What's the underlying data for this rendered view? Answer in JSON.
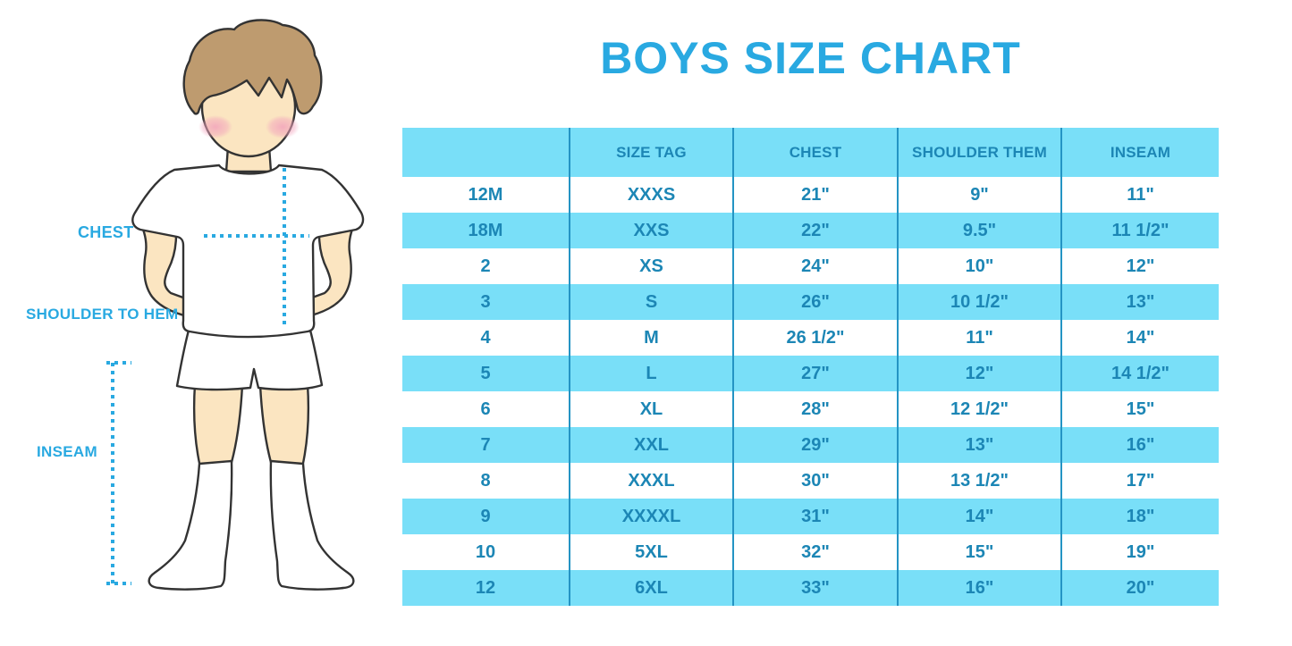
{
  "title": "BOYS SIZE CHART",
  "figure": {
    "description": "cartoon boy in white t-shirt, shorts and knee socks with dotted measurement guides",
    "labels": {
      "chest": "CHEST",
      "shoulder_to_hem": "SHOULDER TO HEM",
      "inseam": "INSEAM"
    }
  },
  "colors": {
    "accent_blue": "#29a9e1",
    "table_text_blue": "#1c86b5",
    "stripe_light_blue": "#79dff8",
    "grid_line_blue": "#2494c4",
    "skin": "#fbe5c1",
    "hair": "#be9b6f",
    "blush": "#f2a3bc",
    "outline": "#333333",
    "background": "#ffffff"
  },
  "chart_data": {
    "type": "table",
    "title": "BOYS SIZE CHART",
    "columns": [
      "",
      "SIZE TAG",
      "CHEST",
      "SHOULDER THEM",
      "INSEAM"
    ],
    "rows": [
      [
        "12M",
        "XXXS",
        "21\"",
        "9\"",
        "11\""
      ],
      [
        "18M",
        "XXS",
        "22\"",
        "9.5\"",
        "11 1/2\""
      ],
      [
        "2",
        "XS",
        "24\"",
        "10\"",
        "12\""
      ],
      [
        "3",
        "S",
        "26\"",
        "10 1/2\"",
        "13\""
      ],
      [
        "4",
        "M",
        "26 1/2\"",
        "11\"",
        "14\""
      ],
      [
        "5",
        "L",
        "27\"",
        "12\"",
        "14 1/2\""
      ],
      [
        "6",
        "XL",
        "28\"",
        "12 1/2\"",
        "15\""
      ],
      [
        "7",
        "XXL",
        "29\"",
        "13\"",
        "16\""
      ],
      [
        "8",
        "XXXL",
        "30\"",
        "13 1/2\"",
        "17\""
      ],
      [
        "9",
        "XXXXL",
        "31\"",
        "14\"",
        "18\""
      ],
      [
        "10",
        "5XL",
        "32\"",
        "15\"",
        "19\""
      ],
      [
        "12",
        "6XL",
        "33\"",
        "16\"",
        "20\""
      ]
    ],
    "layout": {
      "striped": true,
      "stripe_note": "rows alternate white / light blue starting with white (12M row)",
      "header_background": "#79dff8",
      "grid": "vertical column dividers only"
    }
  }
}
